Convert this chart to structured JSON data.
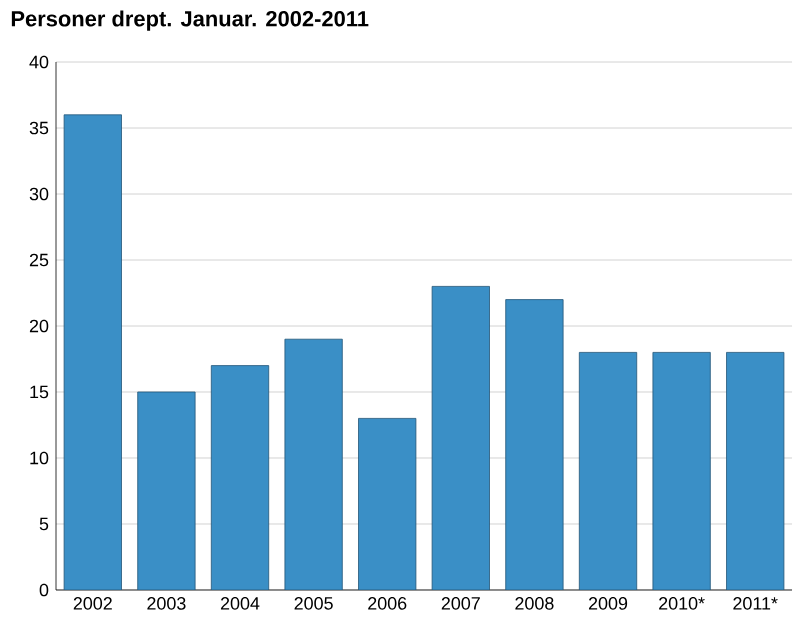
{
  "chart_data": {
    "type": "bar",
    "title": "Personer drept. Januar. 2002-2011",
    "categories": [
      "2002",
      "2003",
      "2004",
      "2005",
      "2006",
      "2007",
      "2008",
      "2009",
      "2010*",
      "2011*"
    ],
    "values": [
      36,
      15,
      17,
      19,
      13,
      23,
      22,
      18,
      18,
      18
    ],
    "color": "#3a8fc6",
    "ylim": [
      0,
      40
    ],
    "yticks": [
      0,
      5,
      10,
      15,
      20,
      25,
      30,
      35,
      40
    ],
    "grid": "y"
  }
}
